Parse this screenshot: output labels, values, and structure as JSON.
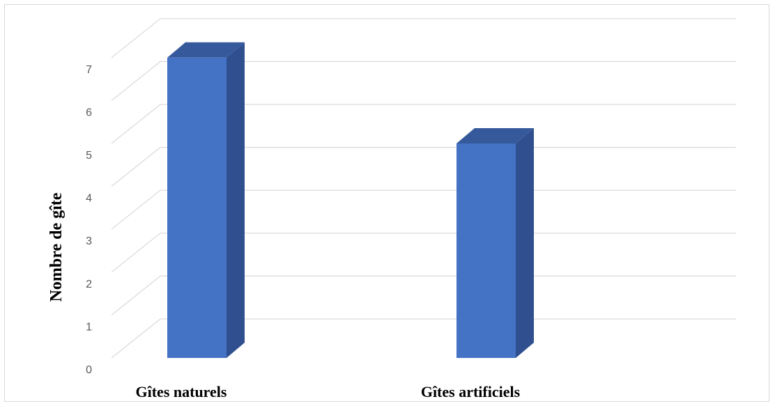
{
  "chart_data": {
    "type": "bar",
    "style": "3d-column",
    "categories": [
      "Gîtes naturels",
      "Gîtes artificiels"
    ],
    "values": [
      7,
      5
    ],
    "title": "",
    "xlabel": "",
    "ylabel": "Nombre de gîte",
    "ylim": [
      0,
      7
    ],
    "yticks": [
      0,
      1,
      2,
      3,
      4,
      5,
      6,
      7
    ],
    "grid": true,
    "legend": "none",
    "colors": {
      "bar_front": "#4472c4",
      "bar_side": "#2f4f8f",
      "bar_top": "#35599b",
      "gridline": "#d9d9d9"
    }
  }
}
